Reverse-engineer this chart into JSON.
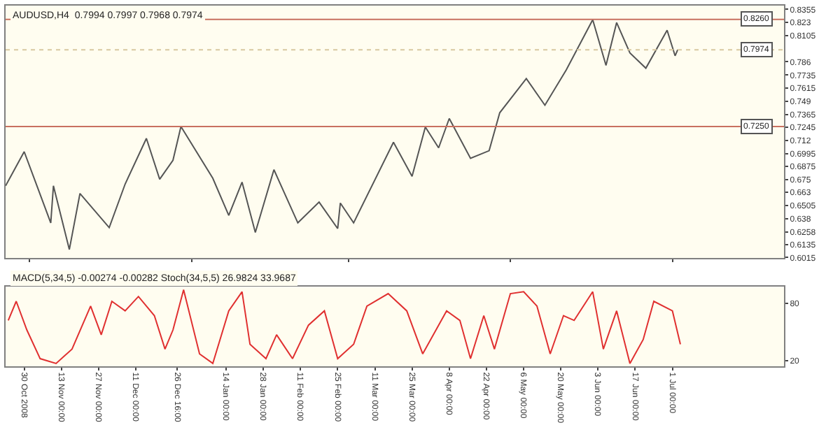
{
  "chart_data": [
    {
      "type": "line",
      "title": "AUDUSD,H4  0.7994 0.7997 0.7968 0.7974",
      "tick_labels": "y",
      "grid": false,
      "marker": "none",
      "line_style": "solid",
      "x": [
        "2008-10-23",
        "2008-10-30",
        "2008-11-09",
        "2008-11-10",
        "2008-11-16",
        "2008-11-20",
        "2008-12-01",
        "2008-12-07",
        "2008-12-15",
        "2008-12-20",
        "2008-12-25",
        "2008-12-28",
        "2009-01-09",
        "2009-01-15",
        "2009-01-20",
        "2009-01-25",
        "2009-02-01",
        "2009-02-10",
        "2009-02-18",
        "2009-02-25",
        "2009-02-26",
        "2009-03-03",
        "2009-03-18",
        "2009-03-25",
        "2009-03-30",
        "2009-04-04",
        "2009-04-08",
        "2009-04-16",
        "2009-04-23",
        "2009-04-27",
        "2009-05-07",
        "2009-05-14",
        "2009-05-22",
        "2009-06-01",
        "2009-06-06",
        "2009-06-10",
        "2009-06-15",
        "2009-06-21",
        "2009-06-29",
        "2009-07-02",
        "2009-07-03"
      ],
      "series": [
        {
          "color": "#555555",
          "values": [
            0.6691,
            0.7013,
            0.6342,
            0.6691,
            0.6091,
            0.6619,
            0.6297,
            0.6708,
            0.7138,
            0.6753,
            0.6932,
            0.725,
            0.6762,
            0.6413,
            0.6726,
            0.6252,
            0.6843,
            0.6342,
            0.6538,
            0.6288,
            0.6529,
            0.6342,
            0.7102,
            0.678,
            0.7245,
            0.7049,
            0.7326,
            0.695,
            0.7022,
            0.738,
            0.7702,
            0.7451,
            0.7782,
            0.8257,
            0.7827,
            0.823,
            0.7944,
            0.78,
            0.8158,
            0.7917,
            0.7974
          ]
        }
      ],
      "xlim": [
        "2008-10-23",
        "2009-08-12"
      ],
      "ylim": [
        0.601,
        0.839
      ],
      "yticks": [
        0.6015,
        0.6135,
        0.6258,
        0.638,
        0.6505,
        0.663,
        0.675,
        0.6875,
        0.6995,
        0.712,
        0.7245,
        0.7365,
        0.749,
        0.7615,
        0.7735,
        0.786,
        0.8105,
        0.823,
        0.8355
      ],
      "ref_lines": [
        {
          "axis": "y",
          "value": 0.826,
          "label": "0.8260",
          "color": "#c87060"
        },
        {
          "axis": "y",
          "value": 0.725,
          "label": "0.7250",
          "color": "#c87060"
        },
        {
          "axis": "y",
          "value": 0.7974,
          "label": "0.7974",
          "color": "#d8c8a0",
          "line_style": "dotted"
        }
      ]
    },
    {
      "type": "line",
      "title": "MACD(5,34,5) -0.00274 -0.00282 Stoch(34,5,5) 26.9824 33.9687",
      "grid": false,
      "marker": "none",
      "line_style": "solid",
      "x": [
        "2008-10-24",
        "2008-10-27",
        "2008-10-31",
        "2008-11-05",
        "2008-11-11",
        "2008-11-17",
        "2008-11-24",
        "2008-11-28",
        "2008-12-02",
        "2008-12-07",
        "2008-12-12",
        "2008-12-18",
        "2008-12-22",
        "2008-12-25",
        "2008-12-29",
        "2009-01-04",
        "2009-01-09",
        "2009-01-15",
        "2009-01-20",
        "2009-01-23",
        "2009-01-29",
        "2009-02-02",
        "2009-02-08",
        "2009-02-14",
        "2009-02-20",
        "2009-02-25",
        "2009-03-03",
        "2009-03-08",
        "2009-03-16",
        "2009-03-23",
        "2009-03-29",
        "2009-04-07",
        "2009-04-12",
        "2009-04-16",
        "2009-04-21",
        "2009-04-25",
        "2009-05-01",
        "2009-05-06",
        "2009-05-11",
        "2009-05-16",
        "2009-05-21",
        "2009-05-25",
        "2009-06-01",
        "2009-06-05",
        "2009-06-10",
        "2009-06-15",
        "2009-06-20",
        "2009-06-24",
        "2009-07-01",
        "2009-07-04"
      ],
      "series": [
        {
          "color": "#e03030",
          "values": [
            62,
            82,
            52,
            22,
            17,
            32,
            77,
            47,
            82,
            72,
            87,
            67,
            32,
            52,
            94,
            27,
            17,
            72,
            92,
            37,
            22,
            47,
            22,
            57,
            72,
            22,
            37,
            77,
            90,
            72,
            27,
            72,
            62,
            22,
            67,
            32,
            90,
            92,
            77,
            27,
            67,
            62,
            92,
            32,
            72,
            17,
            42,
            82,
            72,
            37
          ]
        }
      ],
      "xlim": [
        "2008-10-23",
        "2009-08-12"
      ],
      "ylim": [
        14,
        97
      ],
      "yticks": [
        20,
        80
      ],
      "xticks": [
        {
          "value": "2008-10-30",
          "label": "30 Oct 2008"
        },
        {
          "value": "2008-11-13",
          "label": "13 Nov 00:00"
        },
        {
          "value": "2008-11-27",
          "label": "27 Nov 00:00"
        },
        {
          "value": "2008-12-11",
          "label": "11 Dec 00:00"
        },
        {
          "value": "2008-12-26T16:00",
          "label": "26 Dec 16:00"
        },
        {
          "value": "2009-01-14",
          "label": "14 Jan 00:00"
        },
        {
          "value": "2009-01-28",
          "label": "28 Jan 00:00"
        },
        {
          "value": "2009-02-11",
          "label": "11 Feb 00:00"
        },
        {
          "value": "2009-02-25",
          "label": "25 Feb 00:00"
        },
        {
          "value": "2009-03-11",
          "label": "11 Mar 00:00"
        },
        {
          "value": "2009-03-25",
          "label": "25 Mar 00:00"
        },
        {
          "value": "2009-04-08",
          "label": "8 Apr 00:00"
        },
        {
          "value": "2009-04-22",
          "label": "22 Apr 00:00"
        },
        {
          "value": "2009-05-06",
          "label": "6 May 00:00"
        },
        {
          "value": "2009-05-20",
          "label": "20 May 00:00"
        },
        {
          "value": "2009-06-03",
          "label": "3 Jun 00:00"
        },
        {
          "value": "2009-06-17",
          "label": "17 Jun 00:00"
        },
        {
          "value": "2009-07-01",
          "label": "1 Jul 00:00"
        }
      ]
    }
  ]
}
